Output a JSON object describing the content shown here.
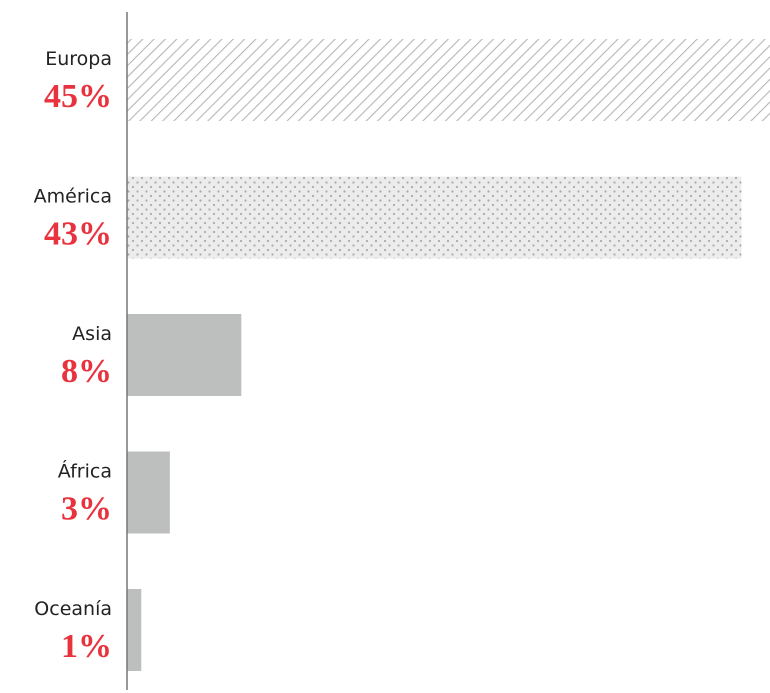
{
  "chart_data": {
    "type": "bar",
    "orientation": "horizontal",
    "categories": [
      "Europa",
      "América",
      "Asia",
      "África",
      "Oceanía"
    ],
    "values": [
      45,
      43,
      8,
      3,
      1
    ],
    "value_labels": [
      "45%",
      "43%",
      "8%",
      "3%",
      "1%"
    ],
    "color": "#bdbfbe",
    "label_color": "#e8333f",
    "patterns": [
      "hatch",
      "dots",
      "solid",
      "solid",
      "solid"
    ]
  }
}
